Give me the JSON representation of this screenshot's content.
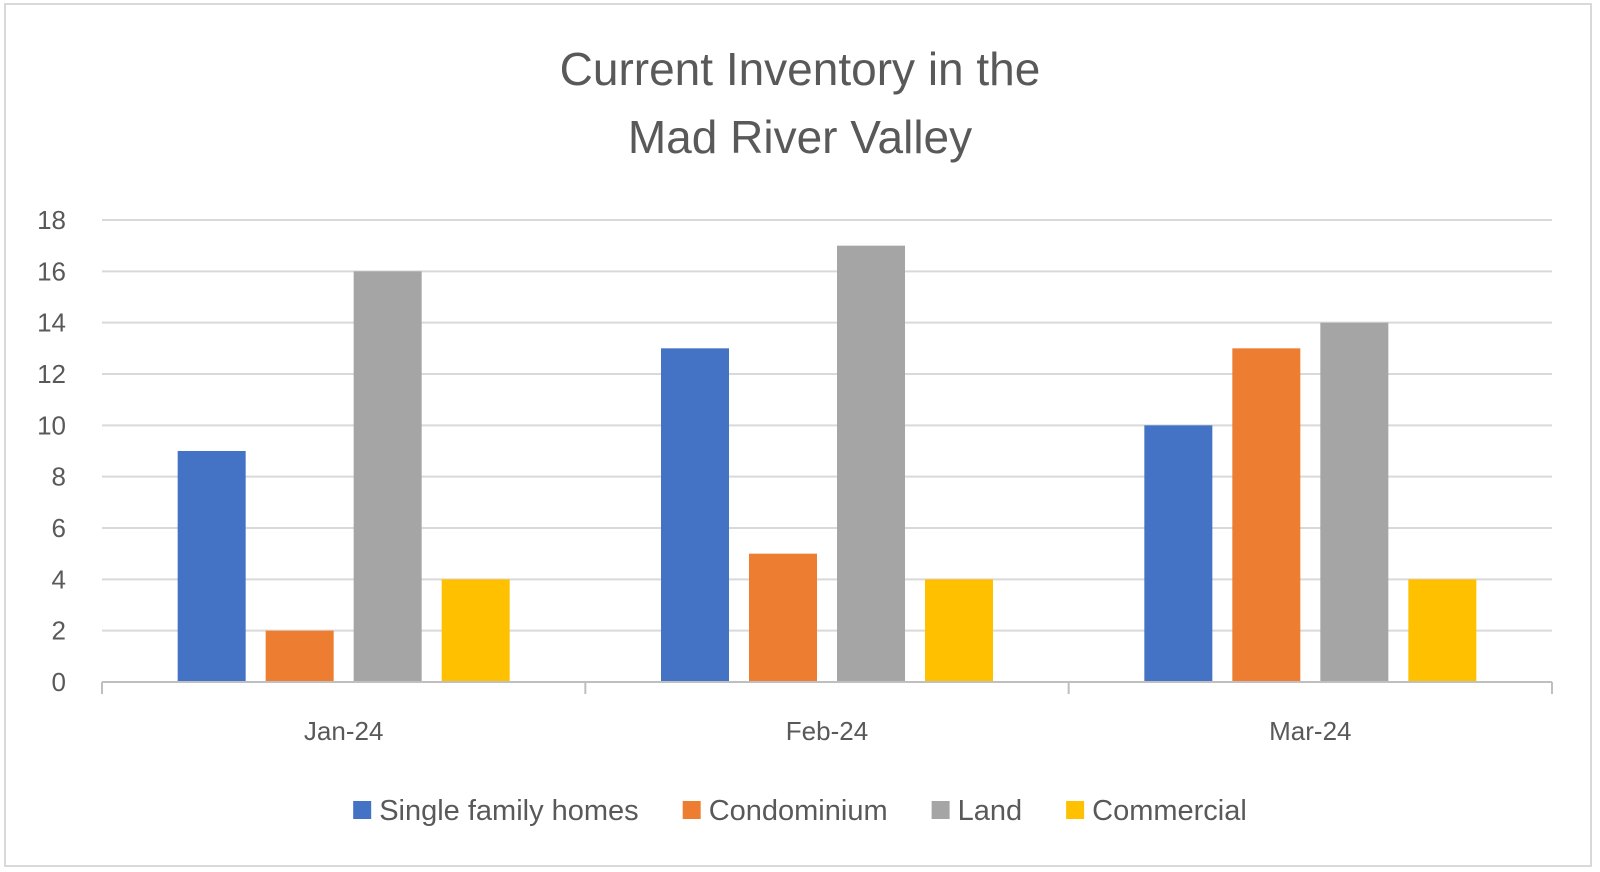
{
  "chart_data": {
    "type": "bar",
    "title": [
      "Current Inventory in the",
      "Mad River Valley"
    ],
    "categories": [
      "Jan-24",
      "Feb-24",
      "Mar-24"
    ],
    "series": [
      {
        "name": "Single family homes",
        "color": "#4472C4",
        "values": [
          9,
          13,
          10
        ]
      },
      {
        "name": "Condominium",
        "color": "#ED7D31",
        "values": [
          2,
          5,
          13
        ]
      },
      {
        "name": "Land",
        "color": "#A5A5A5",
        "values": [
          16,
          17,
          14
        ]
      },
      {
        "name": "Commercial",
        "color": "#FFC000",
        "values": [
          4,
          4,
          4
        ]
      }
    ],
    "ylim": [
      0,
      18
    ],
    "yticks": [
      0,
      2,
      4,
      6,
      8,
      10,
      12,
      14,
      16,
      18
    ],
    "grid": true,
    "legend_position": "bottom"
  }
}
